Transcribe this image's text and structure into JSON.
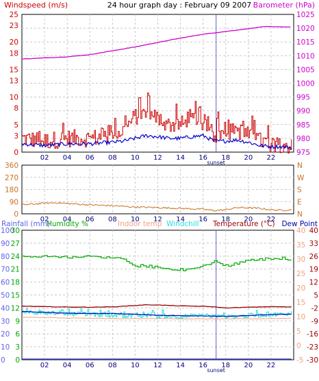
{
  "colors": {
    "wind_speed": "#cc0000",
    "wind_avg": "#0000cc",
    "barometer": "#cc00cc",
    "wind_dir": "#c87020",
    "humidity": "#00aa00",
    "temperature": "#990000",
    "dew_point": "#0000aa",
    "windchill": "#22dddd",
    "indoor_temp": "#f0a080",
    "rainfall": "#4040cc",
    "rain_axis": "#6060ee",
    "grid": "#c8c8c8",
    "sunset_line": "#6060cc",
    "axis_left": "#cc0000",
    "axis_right": "#cc00cc"
  },
  "header": {
    "wind_label": "Windspeed (m/s)",
    "title": "24 hour graph day : February 09 2007",
    "baro_label": "Barometer (hPa)"
  },
  "legend2": {
    "rainfall": "Rainfall (mm)",
    "humidity": "Humidity %",
    "indoor": "Indoor temp",
    "windchill": "Windchill",
    "temperature": "Temperature (°C)",
    "dewpoint": "Dew Point"
  },
  "sunset_label": "sunset",
  "chart_data": [
    {
      "type": "line",
      "title": "24 hour graph day : February 09 2007",
      "x_ticks": [
        "02",
        "04",
        "06",
        "08",
        "10",
        "12",
        "14",
        "16",
        "18",
        "20",
        "22"
      ],
      "x_range": [
        0,
        24
      ],
      "annotation": {
        "label": "sunset",
        "x": 17.15
      },
      "left_axis": {
        "label": "Windspeed (m/s)",
        "ticks": [
          0,
          3,
          5,
          8,
          10,
          13,
          15,
          18,
          20,
          23,
          25
        ],
        "range": [
          0,
          25
        ]
      },
      "right_axis": {
        "label": "Barometer (hPa)",
        "ticks": [
          975,
          980,
          985,
          990,
          995,
          1000,
          1005,
          1010,
          1015,
          1020,
          1025
        ],
        "range": [
          975,
          1025
        ]
      },
      "series": [
        {
          "name": "Windspeed",
          "axis": "left",
          "style": "step",
          "x": [
            0,
            2,
            4,
            6,
            8,
            9,
            10,
            11,
            12,
            13,
            14,
            15,
            16,
            17,
            18,
            19,
            20,
            21,
            22,
            23,
            23.8
          ],
          "y": [
            2.5,
            2.0,
            2.5,
            2.5,
            3.0,
            4.0,
            6.5,
            7.0,
            6.0,
            5.0,
            5.0,
            5.5,
            5.5,
            3.0,
            3.5,
            4.0,
            3.0,
            2.0,
            1.5,
            1.5,
            1.0
          ]
        },
        {
          "name": "Wind average",
          "axis": "left",
          "style": "line",
          "x": [
            0,
            2,
            4,
            6,
            8,
            9,
            10,
            11,
            12,
            13,
            14,
            15,
            16,
            17,
            18,
            19,
            20,
            21,
            22,
            23,
            23.8
          ],
          "y": [
            1.5,
            1.2,
            1.5,
            1.5,
            1.8,
            2.0,
            2.5,
            3.0,
            2.8,
            2.5,
            2.5,
            2.8,
            3.0,
            2.0,
            2.0,
            2.2,
            1.8,
            1.2,
            1.0,
            1.0,
            0.8
          ]
        },
        {
          "name": "Barometer",
          "axis": "right",
          "style": "line",
          "x": [
            0,
            2,
            4,
            6,
            8,
            10,
            12,
            14,
            16,
            18,
            20,
            21.5,
            23.8
          ],
          "y": [
            1008.8,
            1009.2,
            1009.6,
            1010.4,
            1011.8,
            1013.2,
            1014.8,
            1016.4,
            1017.8,
            1018.8,
            1019.8,
            1020.6,
            1020.4
          ]
        }
      ]
    },
    {
      "type": "line",
      "x_ticks": [
        "02",
        "04",
        "06",
        "08",
        "10",
        "12",
        "14",
        "16",
        "18",
        "20",
        "22"
      ],
      "x_range": [
        0,
        24
      ],
      "left_axis": {
        "ticks": [
          0,
          90,
          180,
          270,
          360
        ],
        "range": [
          0,
          360
        ]
      },
      "right_axis": {
        "ticks": [
          "N",
          "E",
          "S",
          "W",
          "N"
        ]
      },
      "series": [
        {
          "name": "Wind direction",
          "axis": "left",
          "style": "line",
          "x": [
            0,
            2,
            3,
            4,
            6,
            8,
            10,
            12,
            14,
            16,
            17,
            18,
            19,
            20,
            21,
            22,
            23,
            23.8
          ],
          "y": [
            66,
            78,
            82,
            76,
            66,
            60,
            50,
            46,
            40,
            34,
            24,
            30,
            46,
            44,
            40,
            30,
            26,
            30
          ]
        }
      ]
    },
    {
      "type": "line",
      "x_ticks": [
        "02",
        "04",
        "06",
        "08",
        "10",
        "12",
        "14",
        "16",
        "18",
        "20",
        "22"
      ],
      "x_range": [
        0,
        24
      ],
      "annotation": {
        "label": "sunset",
        "x": 17.15
      },
      "axis_rainfall": {
        "label": "Rainfall (mm)",
        "ticks": [
          0,
          10,
          20,
          30,
          40,
          50,
          60,
          70,
          80,
          90,
          100
        ],
        "range": [
          0,
          100
        ]
      },
      "axis_humidity": {
        "label": "Humidity %",
        "ticks": [
          0,
          3,
          6,
          9,
          12,
          15,
          18,
          21,
          24,
          27,
          30
        ],
        "range": [
          0,
          30
        ]
      },
      "axis_indoor": {
        "label": "Indoor temp",
        "ticks": [
          -5,
          0,
          5,
          10,
          15,
          20,
          25,
          30,
          35,
          40
        ],
        "range": [
          -5,
          40
        ]
      },
      "axis_temperature": {
        "label": "Temperature (°C)",
        "ticks": [
          -30,
          -23,
          -16,
          -9,
          -2,
          5,
          12,
          19,
          26,
          33,
          40
        ],
        "range": [
          -30,
          40
        ]
      },
      "series": [
        {
          "name": "Humidity",
          "axis": "rainfall",
          "style": "step",
          "x": [
            0,
            2,
            4,
            6,
            7,
            8,
            9,
            10,
            11,
            12,
            13,
            14,
            15,
            16,
            17,
            18,
            19,
            20,
            21,
            22,
            23.8
          ],
          "y": [
            79,
            80,
            79,
            80,
            79,
            79,
            78,
            72,
            72,
            71,
            70,
            69,
            70,
            72,
            76,
            72,
            74,
            77,
            77,
            78,
            77
          ]
        },
        {
          "name": "Temperature",
          "axis": "temperature",
          "style": "line",
          "x": [
            0,
            2,
            4,
            6,
            8,
            10,
            11,
            12,
            14,
            16,
            17,
            18,
            20,
            22,
            23.8
          ],
          "y": [
            -1.0,
            -1.3,
            -1.5,
            -1.6,
            -1.4,
            -0.7,
            -0.3,
            -0.4,
            -0.9,
            -1.1,
            -1.4,
            -2.0,
            -1.6,
            -1.3,
            -1.5
          ]
        },
        {
          "name": "Dew Point",
          "axis": "temperature",
          "style": "line",
          "x": [
            0,
            2,
            4,
            6,
            8,
            10,
            12,
            14,
            16,
            18,
            20,
            22,
            23.8
          ],
          "y": [
            -3.9,
            -4.3,
            -4.8,
            -5.0,
            -5.0,
            -5.4,
            -6.0,
            -6.2,
            -6.3,
            -6.5,
            -6.1,
            -5.6,
            -5.4
          ]
        },
        {
          "name": "Windchill",
          "axis": "temperature",
          "style": "noisy",
          "x": [
            0,
            2,
            4,
            6,
            8,
            10,
            12,
            14,
            16,
            18,
            20,
            22,
            23.8
          ],
          "y": [
            -4.0,
            -4.8,
            -5.0,
            -5.5,
            -6.0,
            -6.3,
            -6.5,
            -6.5,
            -6.2,
            -6.8,
            -6.3,
            -5.5,
            -5.5
          ]
        },
        {
          "name": "Indoor temp",
          "axis": "indoor",
          "style": "line",
          "x": [
            0,
            4,
            8,
            12,
            16,
            20,
            23.8
          ],
          "y": [
            9.8,
            9.5,
            9.3,
            9.3,
            9.2,
            9.2,
            9.4
          ]
        },
        {
          "name": "Rainfall",
          "axis": "rainfall",
          "style": "line",
          "x": [
            0,
            23.8
          ],
          "y": [
            0,
            0
          ]
        }
      ]
    }
  ]
}
